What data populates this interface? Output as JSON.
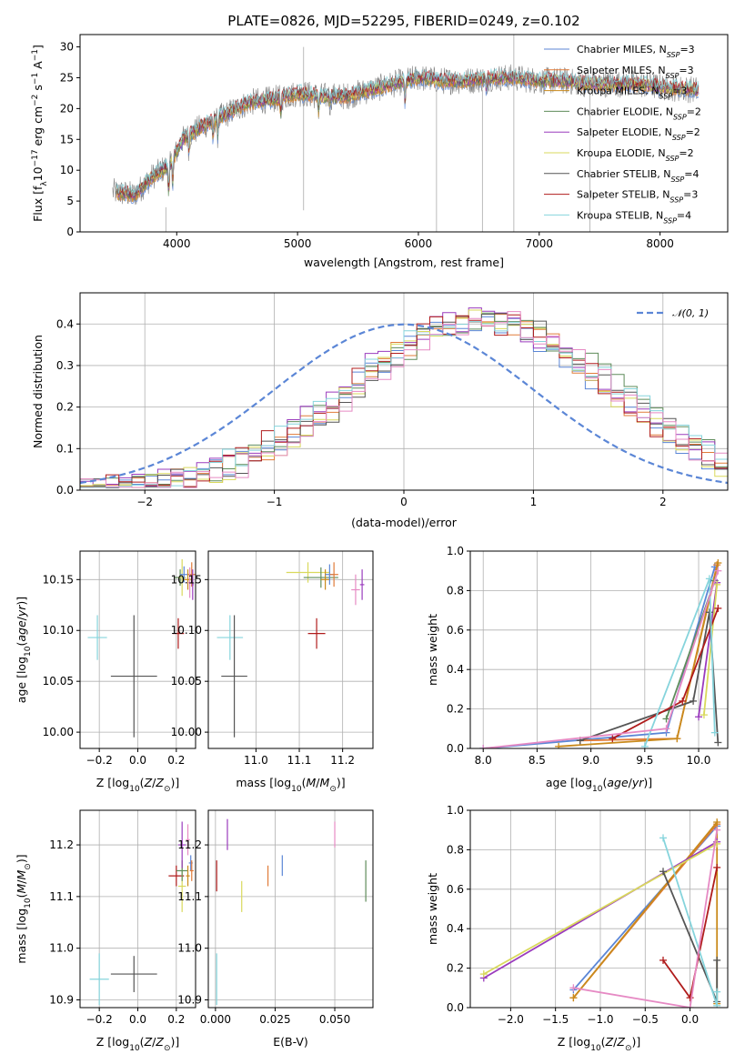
{
  "title": "PLATE=0826, MJD=52295, FIBERID=0249, z=0.102",
  "colors": {
    "Chabrier MILES": "#5b86d6",
    "Salpeter MILES": "#e07b39",
    "Kroupa MILES": "#c98a1c",
    "Chabrier ELODIE": "#5e8c5a",
    "Salpeter ELODIE": "#9a3bbd",
    "Kroupa ELODIE": "#d9d95c",
    "Chabrier STELIB": "#555555",
    "Salpeter STELIB": "#b01c1c",
    "Kroupa STELIB": "#86d4dc",
    "data": "#808080",
    "normal": "#5b86d6",
    "pink": "#e68ac4"
  },
  "chart_data": [
    {
      "type": "line",
      "id": "spectrum",
      "title": "PLATE=0826, MJD=52295, FIBERID=0249, z=0.102",
      "xlabel": "wavelength [Angstrom, rest frame]",
      "ylabel_parts": [
        "Flux [f",
        "λ",
        "10",
        "−17",
        " erg cm",
        "−2",
        " s",
        "−1",
        " A",
        "−1",
        "]"
      ],
      "xlim": [
        3200,
        8560
      ],
      "ylim": [
        0,
        32
      ],
      "xticks": [
        "4000",
        "5000",
        "6000",
        "7000",
        "8000"
      ],
      "yticks": [
        "0",
        "5",
        "10",
        "15",
        "20",
        "25",
        "30"
      ],
      "grid": false,
      "legend_position": "top-right",
      "spectrum_x_range": [
        3470,
        8320
      ],
      "continuum_anchors": [
        [
          3470,
          6.5
        ],
        [
          3650,
          6
        ],
        [
          3800,
          9
        ],
        [
          3950,
          11
        ],
        [
          4050,
          15
        ],
        [
          4200,
          17
        ],
        [
          4400,
          19
        ],
        [
          4600,
          21
        ],
        [
          4800,
          21.5
        ],
        [
          5000,
          22.5
        ],
        [
          5200,
          22
        ],
        [
          5400,
          22
        ],
        [
          5600,
          23
        ],
        [
          5800,
          24
        ],
        [
          6000,
          25
        ],
        [
          6200,
          24.5
        ],
        [
          6400,
          24.5
        ],
        [
          6600,
          25
        ],
        [
          6800,
          25
        ],
        [
          7000,
          24.5
        ],
        [
          7200,
          24.5
        ],
        [
          7400,
          24
        ],
        [
          7600,
          24
        ],
        [
          7800,
          24
        ],
        [
          8000,
          23.5
        ],
        [
          8320,
          23
        ]
      ],
      "series": [
        {
          "name": "Chabrier MILES",
          "nssp": "3"
        },
        {
          "name": "Salpeter MILES",
          "nssp": "3"
        },
        {
          "name": "Kroupa MILES",
          "nssp": "3"
        },
        {
          "name": "Chabrier ELODIE",
          "nssp": "2"
        },
        {
          "name": "Salpeter ELODIE",
          "nssp": "2"
        },
        {
          "name": "Kroupa ELODIE",
          "nssp": "2"
        },
        {
          "name": "Chabrier STELIB",
          "nssp": "4"
        },
        {
          "name": "Salpeter STELIB",
          "nssp": "3"
        },
        {
          "name": "Kroupa STELIB",
          "nssp": "4"
        }
      ]
    },
    {
      "type": "line",
      "id": "residuals",
      "xlabel": "(data-model)/error",
      "ylabel": "Normed distribution",
      "xlim": [
        -2.5,
        2.5
      ],
      "ylim": [
        0,
        0.475
      ],
      "xticks": [
        "−2",
        "−1",
        "0",
        "1",
        "2"
      ],
      "yticks": [
        "0.0",
        "0.1",
        "0.2",
        "0.3",
        "0.4"
      ],
      "grid": true,
      "legend_position": "top-right",
      "legend_label": "𝒩(0, 1)",
      "bin_width": 0.1,
      "histogram_series": [
        "Chabrier MILES",
        "Salpeter MILES",
        "Chabrier ELODIE",
        "Salpeter ELODIE",
        "Kroupa ELODIE",
        "Chabrier STELIB",
        "Salpeter STELIB",
        "Kroupa STELIB",
        "pink"
      ]
    },
    {
      "type": "scatter",
      "id": "age_vs_Z",
      "xlabel": "Z [log10(Z/Z⊙)]",
      "ylabel": "age  [log10(age/yr)]",
      "xlim": [
        -0.3,
        0.3
      ],
      "ylim": [
        9.984,
        10.178
      ],
      "xticks": [
        "−0.2",
        "0.0",
        "0.2"
      ],
      "yticks": [
        "10.00",
        "10.05",
        "10.10",
        "10.15"
      ],
      "grid": true,
      "points": [
        {
          "series": "Kroupa STELIB",
          "x": -0.21,
          "y": 10.093,
          "xerr": 0.05,
          "yerr": 0.022
        },
        {
          "series": "Chabrier STELIB",
          "x": -0.02,
          "y": 10.055,
          "xerr": 0.12,
          "yerr": 0.06
        },
        {
          "series": "Salpeter STELIB",
          "x": 0.21,
          "y": 10.097,
          "xerr": 0.03,
          "yerr": 0.015
        },
        {
          "series": "Chabrier ELODIE",
          "x": 0.22,
          "y": 10.152,
          "xerr": 0.03,
          "yerr": 0.008
        },
        {
          "series": "Kroupa ELODIE",
          "x": 0.23,
          "y": 10.152,
          "xerr": 0.02,
          "yerr": 0.018
        },
        {
          "series": "Chabrier MILES",
          "x": 0.24,
          "y": 10.155,
          "xerr": 0.02,
          "yerr": 0.008
        },
        {
          "series": "Kroupa MILES",
          "x": 0.26,
          "y": 10.15,
          "xerr": 0.02,
          "yerr": 0.01
        },
        {
          "series": "Salpeter MILES",
          "x": 0.28,
          "y": 10.155,
          "xerr": 0.02,
          "yerr": 0.012
        },
        {
          "series": "pink",
          "x": 0.27,
          "y": 10.147,
          "xerr": 0.01,
          "yerr": 0.015
        },
        {
          "series": "Salpeter ELODIE",
          "x": 0.285,
          "y": 10.145,
          "xerr": 0.005,
          "yerr": 0.015
        }
      ]
    },
    {
      "type": "scatter",
      "id": "age_vs_mass",
      "xlabel": "mass [log10(M/M⊙)]",
      "xlim": [
        10.89,
        11.27
      ],
      "ylim": [
        9.984,
        10.178
      ],
      "xticks": [
        "11.0",
        "11.1",
        "11.2"
      ],
      "yticks": [
        "10.00",
        "10.05",
        "10.10",
        "10.15"
      ],
      "grid": true,
      "points": [
        {
          "series": "Kroupa STELIB",
          "x": 10.94,
          "y": 10.093,
          "xerr": 0.03,
          "yerr": 0.022
        },
        {
          "series": "Chabrier STELIB",
          "x": 10.95,
          "y": 10.055,
          "xerr": 0.03,
          "yerr": 0.06
        },
        {
          "series": "Salpeter STELIB",
          "x": 11.14,
          "y": 10.097,
          "xerr": 0.02,
          "yerr": 0.015
        },
        {
          "series": "Kroupa ELODIE",
          "x": 11.12,
          "y": 10.157,
          "xerr": 0.05,
          "yerr": 0.01
        },
        {
          "series": "Chabrier ELODIE",
          "x": 11.15,
          "y": 10.152,
          "xerr": 0.04,
          "yerr": 0.01
        },
        {
          "series": "Kroupa MILES",
          "x": 11.16,
          "y": 10.15,
          "xerr": 0.01,
          "yerr": 0.01
        },
        {
          "series": "Chabrier MILES",
          "x": 11.17,
          "y": 10.155,
          "xerr": 0.01,
          "yerr": 0.01
        },
        {
          "series": "Salpeter MILES",
          "x": 11.18,
          "y": 10.155,
          "xerr": 0.01,
          "yerr": 0.012
        },
        {
          "series": "pink",
          "x": 11.23,
          "y": 10.14,
          "xerr": 0.01,
          "yerr": 0.015
        },
        {
          "series": "Salpeter ELODIE",
          "x": 11.245,
          "y": 10.145,
          "xerr": 0.005,
          "yerr": 0.015
        }
      ]
    },
    {
      "type": "line",
      "id": "weight_vs_age",
      "xlabel": "age  [log10(age/yr)]",
      "ylabel": "mass weight",
      "xlim": [
        7.88,
        10.27
      ],
      "ylim": [
        0,
        1.0
      ],
      "xticks": [
        "8.0",
        "8.5",
        "9.0",
        "9.5",
        "10.0"
      ],
      "yticks": [
        "0.0",
        "0.2",
        "0.4",
        "0.6",
        "0.8",
        "1.0"
      ],
      "grid": true,
      "series": [
        {
          "name": "Chabrier MILES",
          "x": [
            8.0,
            9.7,
            10.15
          ],
          "y": [
            0.0,
            0.08,
            0.92
          ]
        },
        {
          "name": "Salpeter MILES",
          "x": [
            8.9,
            9.8,
            10.17
          ],
          "y": [
            0.04,
            0.05,
            0.93
          ]
        },
        {
          "name": "Kroupa MILES",
          "x": [
            8.7,
            9.8,
            10.18
          ],
          "y": [
            0.01,
            0.05,
            0.94
          ]
        },
        {
          "name": "Chabrier ELODIE",
          "x": [
            9.7,
            10.15
          ],
          "y": [
            0.15,
            0.85
          ]
        },
        {
          "name": "Salpeter ELODIE",
          "x": [
            10.0,
            10.17
          ],
          "y": [
            0.16,
            0.84
          ]
        },
        {
          "name": "Kroupa ELODIE",
          "x": [
            10.05,
            10.17
          ],
          "y": [
            0.17,
            0.83
          ]
        },
        {
          "name": "Chabrier STELIB",
          "x": [
            8.9,
            9.95,
            10.1,
            10.18
          ],
          "y": [
            0.04,
            0.24,
            0.69,
            0.03
          ]
        },
        {
          "name": "Salpeter STELIB",
          "x": [
            9.2,
            9.85,
            10.18
          ],
          "y": [
            0.05,
            0.24,
            0.71
          ]
        },
        {
          "name": "Kroupa STELIB",
          "x": [
            9.5,
            10.1,
            10.15
          ],
          "y": [
            0.01,
            0.86,
            0.08
          ]
        },
        {
          "name": "pink",
          "x": [
            8.0,
            9.7,
            10.18
          ],
          "y": [
            0.0,
            0.1,
            0.9
          ]
        }
      ]
    },
    {
      "type": "scatter",
      "id": "mass_vs_Z",
      "xlabel": "Z [log10(Z/Z⊙)]",
      "ylabel": "mass [log10(M/M⊙)]",
      "xlim": [
        -0.3,
        0.3
      ],
      "ylim": [
        10.885,
        11.267
      ],
      "xticks": [
        "−0.2",
        "0.0",
        "0.2"
      ],
      "yticks": [
        "10.9",
        "11.0",
        "11.1",
        "11.2"
      ],
      "grid": true,
      "points": [
        {
          "series": "Kroupa STELIB",
          "x": -0.2,
          "y": 10.94,
          "xerr": 0.05,
          "yerr": 0.05
        },
        {
          "series": "Chabrier STELIB",
          "x": -0.02,
          "y": 10.95,
          "xerr": 0.12,
          "yerr": 0.035
        },
        {
          "series": "Salpeter STELIB",
          "x": 0.2,
          "y": 11.14,
          "xerr": 0.04,
          "yerr": 0.02
        },
        {
          "series": "Kroupa ELODIE",
          "x": 0.23,
          "y": 11.12,
          "xerr": 0.02,
          "yerr": 0.05
        },
        {
          "series": "Chabrier ELODIE",
          "x": 0.23,
          "y": 11.15,
          "xerr": 0.03,
          "yerr": 0.02
        },
        {
          "series": "Salpeter ELODIE",
          "x": 0.23,
          "y": 11.2,
          "xerr": 0.02,
          "yerr": 0.045
        },
        {
          "series": "Kroupa MILES",
          "x": 0.26,
          "y": 11.14,
          "xerr": 0.01,
          "yerr": 0.02
        },
        {
          "series": "pink",
          "x": 0.26,
          "y": 11.21,
          "xerr": 0.01,
          "yerr": 0.03
        },
        {
          "series": "Chabrier MILES",
          "x": 0.275,
          "y": 11.165,
          "xerr": 0.01,
          "yerr": 0.015
        },
        {
          "series": "Salpeter MILES",
          "x": 0.28,
          "y": 11.15,
          "xerr": 0.01,
          "yerr": 0.02
        }
      ]
    },
    {
      "type": "scatter",
      "id": "mass_vs_ebv",
      "xlabel": "E(B-V)",
      "xlim": [
        -0.003,
        0.066
      ],
      "ylim": [
        10.885,
        11.267
      ],
      "xticks": [
        "0.000",
        "0.025",
        "0.050"
      ],
      "yticks": [
        "10.9",
        "11.0",
        "11.1",
        "11.2"
      ],
      "grid": true,
      "points": [
        {
          "series": "Kroupa STELIB",
          "x": 0.0005,
          "y": 10.94,
          "yerr": 0.05
        },
        {
          "series": "Salpeter STELIB",
          "x": 0.0005,
          "y": 11.14,
          "yerr": 0.03
        },
        {
          "series": "Salpeter ELODIE",
          "x": 0.005,
          "y": 11.22,
          "yerr": 0.03
        },
        {
          "series": "Kroupa ELODIE",
          "x": 0.011,
          "y": 11.1,
          "yerr": 0.03
        },
        {
          "series": "Salpeter MILES",
          "x": 0.022,
          "y": 11.14,
          "yerr": 0.02
        },
        {
          "series": "Chabrier MILES",
          "x": 0.028,
          "y": 11.16,
          "yerr": 0.02
        },
        {
          "series": "pink",
          "x": 0.05,
          "y": 11.22,
          "yerr": 0.025
        },
        {
          "series": "Chabrier ELODIE",
          "x": 0.063,
          "y": 11.13,
          "yerr": 0.04
        }
      ]
    },
    {
      "type": "line",
      "id": "weight_vs_Z",
      "xlabel": "Z [log10(Z/Z⊙)]",
      "ylabel": "mass weight",
      "xlim": [
        -2.45,
        0.42
      ],
      "ylim": [
        0,
        1.0
      ],
      "xticks": [
        "−2.0",
        "−1.5",
        "−1.0",
        "−0.5",
        "0.0"
      ],
      "yticks": [
        "0.0",
        "0.2",
        "0.4",
        "0.6",
        "0.8",
        "1.0"
      ],
      "grid": true,
      "series": [
        {
          "name": "Chabrier MILES",
          "x": [
            -1.3,
            0.3
          ],
          "y": [
            0.09,
            0.92
          ]
        },
        {
          "name": "Salpeter MILES",
          "x": [
            -1.3,
            0.3
          ],
          "y": [
            0.05,
            0.93
          ]
        },
        {
          "name": "Kroupa MILES",
          "x": [
            -1.3,
            0.3,
            0.3
          ],
          "y": [
            0.05,
            0.94,
            0.02
          ]
        },
        {
          "name": "Salpeter ELODIE",
          "x": [
            -2.3,
            0.3
          ],
          "y": [
            0.15,
            0.84
          ]
        },
        {
          "name": "Kroupa ELODIE",
          "x": [
            -2.3,
            0.3
          ],
          "y": [
            0.17,
            0.83
          ]
        },
        {
          "name": "Chabrier STELIB",
          "x": [
            -0.3,
            0.3,
            0.3
          ],
          "y": [
            0.69,
            0.03,
            0.24
          ]
        },
        {
          "name": "Salpeter STELIB",
          "x": [
            -0.3,
            0.0,
            0.3
          ],
          "y": [
            0.24,
            0.05,
            0.71
          ]
        },
        {
          "name": "Kroupa STELIB",
          "x": [
            -0.3,
            0.3,
            0.3
          ],
          "y": [
            0.86,
            0.01,
            0.08
          ]
        },
        {
          "name": "pink",
          "x": [
            -1.3,
            0.0,
            0.3
          ],
          "y": [
            0.1,
            0.0,
            0.9
          ]
        }
      ]
    }
  ]
}
